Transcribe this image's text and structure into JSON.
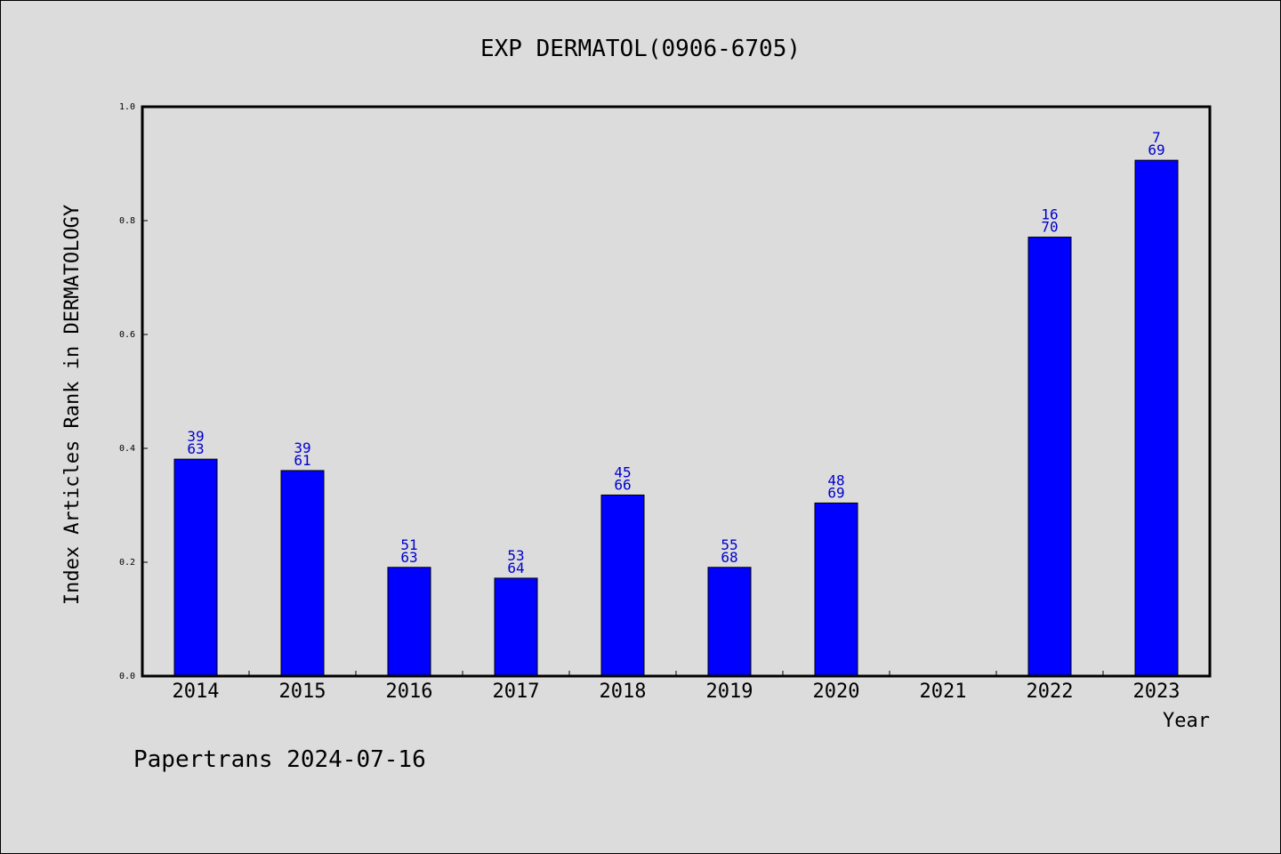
{
  "chart_data": {
    "type": "bar",
    "title": "EXP DERMATOL(0906-6705)",
    "xlabel": "Year",
    "ylabel": "Index Articles Rank in DERMATOLOGY",
    "categories": [
      "2014",
      "2015",
      "2016",
      "2017",
      "2018",
      "2019",
      "2020",
      "2021",
      "2022",
      "2023"
    ],
    "values": [
      0.381,
      0.361,
      0.191,
      0.172,
      0.318,
      0.191,
      0.304,
      null,
      0.771,
      0.906
    ],
    "data_labels": [
      [
        "39",
        "63"
      ],
      [
        "39",
        "61"
      ],
      [
        "51",
        "63"
      ],
      [
        "53",
        "64"
      ],
      [
        "45",
        "66"
      ],
      [
        "55",
        "68"
      ],
      [
        "48",
        "69"
      ],
      null,
      [
        "16",
        "70"
      ],
      [
        "7",
        "69"
      ]
    ],
    "ylim": [
      0,
      1.0
    ],
    "yticks": [
      "0.0",
      "0.2",
      "0.4",
      "0.6",
      "0.8",
      "1.0"
    ],
    "grid": false,
    "bar_color": "#0000ff",
    "label_color": "#0000cc"
  },
  "footer": "Papertrans 2024-07-16"
}
